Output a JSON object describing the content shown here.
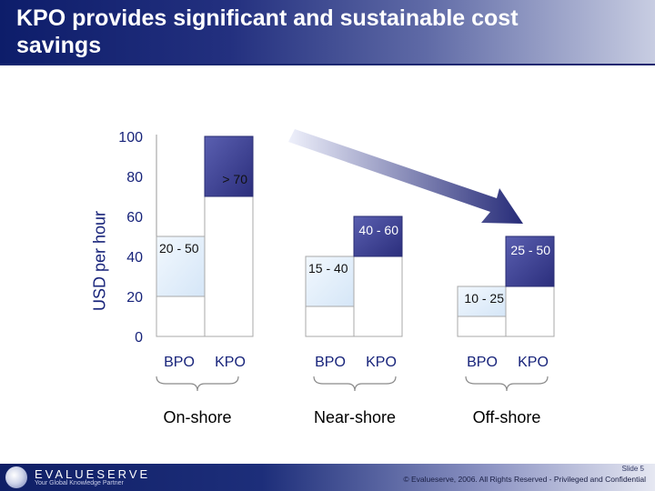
{
  "title": "KPO provides significant and sustainable cost savings",
  "chart_data": {
    "type": "bar",
    "ylabel": "USD per hour",
    "ylim": [
      0,
      100
    ],
    "yticks": [
      0,
      20,
      40,
      60,
      80,
      100
    ],
    "groups": [
      {
        "name": "On-shore",
        "bars": [
          {
            "category": "BPO",
            "low": 20,
            "high": 50,
            "label": "20 - 50",
            "color": "#e4f0fb"
          },
          {
            "category": "KPO",
            "low": 70,
            "high": 100,
            "label": "> 70",
            "color": "#3c3f93"
          }
        ]
      },
      {
        "name": "Near-shore",
        "bars": [
          {
            "category": "BPO",
            "low": 15,
            "high": 40,
            "label": "15 - 40",
            "color": "#e4f0fb"
          },
          {
            "category": "KPO",
            "low": 40,
            "high": 60,
            "label": "40 - 60",
            "color": "#3c3f93"
          }
        ]
      },
      {
        "name": "Off-shore",
        "bars": [
          {
            "category": "BPO",
            "low": 10,
            "high": 25,
            "label": "10 - 25",
            "color": "#e4f0fb"
          },
          {
            "category": "KPO",
            "low": 25,
            "high": 50,
            "label": "25 - 50",
            "color": "#3c3f93"
          }
        ]
      }
    ],
    "colors": {
      "axis_text": "#17237a",
      "arrow_dark": "#262b78",
      "arrow_light": "#eef0fb"
    }
  },
  "footer": {
    "brand": "EVALUESERVE",
    "tagline": "Your Global Knowledge Partner",
    "slide": "Slide 5",
    "copyright": "© Evalueserve, 2006. All Rights Reserved - Privileged and Confidential"
  }
}
